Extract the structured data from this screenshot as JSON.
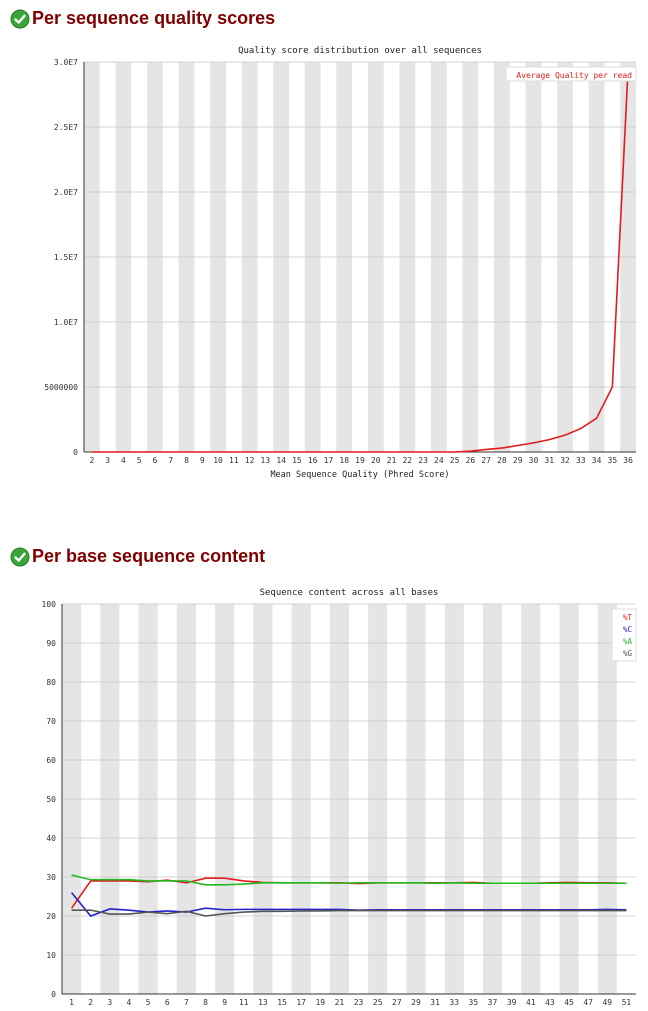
{
  "sections": [
    {
      "title": "Per sequence quality scores",
      "status_icon": "check-circle-icon"
    },
    {
      "title": "Per base sequence content",
      "status_icon": "check-circle-icon"
    }
  ],
  "colors": {
    "title": "#800000",
    "stripe": "#e5e5e5",
    "red": "#e41a1c",
    "blue": "#2222cc",
    "green": "#22bb22",
    "gray": "#555555"
  },
  "chart_data": [
    {
      "type": "line",
      "title": "Quality score distribution over all sequences",
      "xlabel": "Mean Sequence Quality (Phred Score)",
      "ylabel": "",
      "categories": [
        "2",
        "3",
        "4",
        "5",
        "6",
        "7",
        "8",
        "9",
        "10",
        "11",
        "12",
        "13",
        "14",
        "15",
        "16",
        "17",
        "18",
        "19",
        "20",
        "21",
        "22",
        "23",
        "24",
        "25",
        "26",
        "27",
        "28",
        "29",
        "30",
        "31",
        "32",
        "33",
        "34",
        "35",
        "36"
      ],
      "ylim": [
        0,
        30000000
      ],
      "yticks": [
        0,
        5000000,
        10000000,
        15000000,
        20000000,
        25000000,
        30000000
      ],
      "ytick_labels": [
        "0",
        "5000000",
        "1.0E7",
        "1.5E7",
        "2.0E7",
        "2.5E7",
        "3.0E7"
      ],
      "series": [
        {
          "name": "Average Quality per read",
          "color": "#e41a1c",
          "values": [
            0,
            0,
            0,
            0,
            0,
            0,
            0,
            0,
            0,
            0,
            0,
            0,
            0,
            0,
            0,
            0,
            0,
            0,
            0,
            0,
            0,
            0,
            0,
            5000,
            60000,
            200000,
            300000,
            500000,
            700000,
            950000,
            1300000,
            1800000,
            2600000,
            5000000,
            29500000
          ]
        }
      ]
    },
    {
      "type": "line",
      "title": "Sequence content across all bases",
      "xlabel": "",
      "ylabel": "",
      "categories": [
        "1",
        "2",
        "3",
        "4",
        "5",
        "6",
        "7",
        "8",
        "9",
        "11",
        "13",
        "15",
        "17",
        "19",
        "21",
        "23",
        "25",
        "27",
        "29",
        "31",
        "33",
        "35",
        "37",
        "39",
        "41",
        "43",
        "45",
        "47",
        "49",
        "51"
      ],
      "ylim": [
        0,
        100
      ],
      "yticks": [
        0,
        10,
        20,
        30,
        40,
        50,
        60,
        70,
        80,
        90,
        100
      ],
      "ytick_labels": [
        "0",
        "10",
        "20",
        "30",
        "40",
        "50",
        "60",
        "70",
        "80",
        "90",
        "100"
      ],
      "series": [
        {
          "name": "%T",
          "color": "#e41a1c",
          "values": [
            22,
            29,
            29,
            29,
            28.8,
            29.2,
            28.5,
            29.7,
            29.7,
            29,
            28.6,
            28.5,
            28.5,
            28.5,
            28.5,
            28.3,
            28.5,
            28.5,
            28.5,
            28.5,
            28.5,
            28.6,
            28.4,
            28.4,
            28.4,
            28.5,
            28.6,
            28.5,
            28.5,
            28.4
          ]
        },
        {
          "name": "%C",
          "color": "#2222cc",
          "values": [
            26,
            20,
            21.8,
            21.5,
            21,
            21.3,
            21,
            22,
            21.6,
            21.7,
            21.7,
            21.7,
            21.7,
            21.7,
            21.7,
            21.5,
            21.6,
            21.6,
            21.6,
            21.6,
            21.6,
            21.6,
            21.6,
            21.6,
            21.6,
            21.6,
            21.6,
            21.6,
            21.7,
            21.6
          ]
        },
        {
          "name": "%A",
          "color": "#22bb22",
          "values": [
            30.5,
            29.3,
            29.3,
            29.3,
            29,
            29,
            29,
            28,
            28,
            28.2,
            28.5,
            28.5,
            28.5,
            28.5,
            28.4,
            28.5,
            28.5,
            28.5,
            28.5,
            28.4,
            28.5,
            28.4,
            28.4,
            28.4,
            28.4,
            28.4,
            28.4,
            28.4,
            28.4,
            28.4
          ]
        },
        {
          "name": "%G",
          "color": "#555555",
          "values": [
            21.5,
            21.5,
            20.5,
            20.5,
            21,
            20.6,
            21.2,
            20,
            20.6,
            21,
            21.2,
            21.2,
            21.3,
            21.3,
            21.4,
            21.4,
            21.4,
            21.4,
            21.4,
            21.4,
            21.4,
            21.4,
            21.4,
            21.4,
            21.4,
            21.4,
            21.4,
            21.4,
            21.4,
            21.4
          ]
        }
      ]
    }
  ]
}
